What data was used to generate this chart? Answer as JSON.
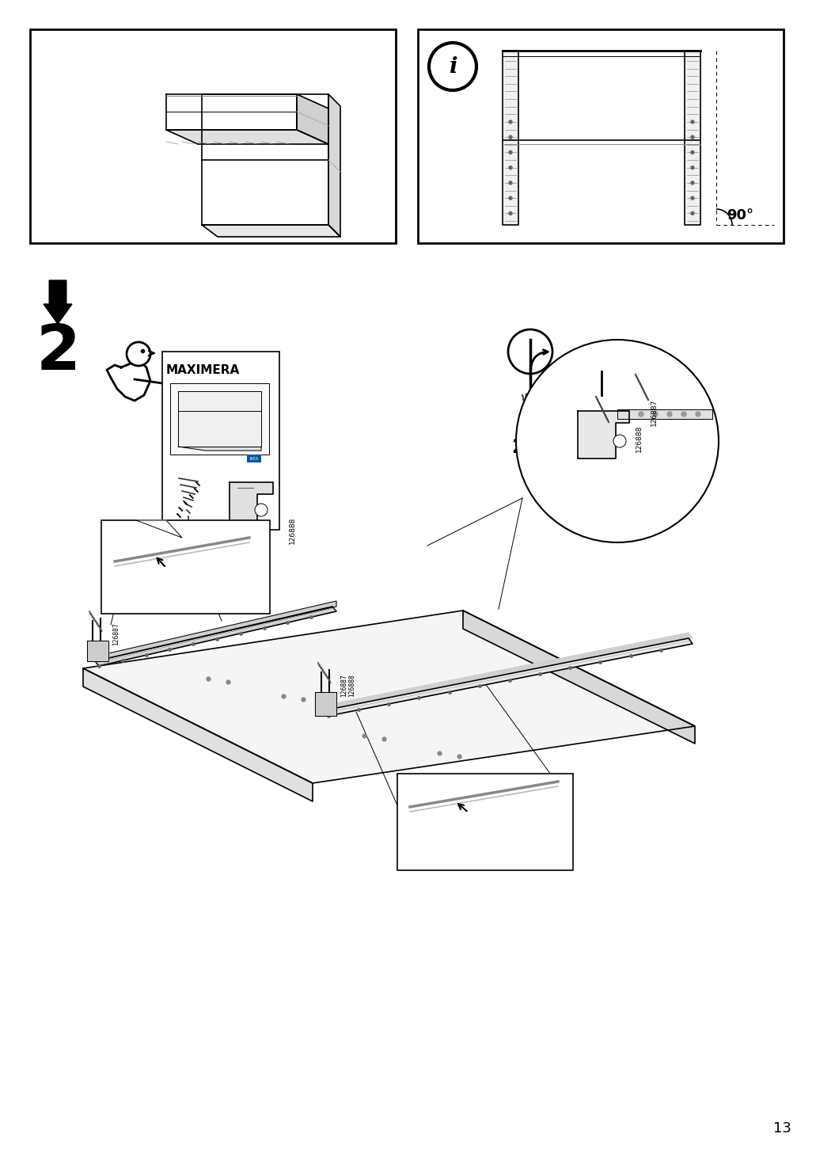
{
  "page_number": "13",
  "bg": "#ffffff",
  "lc": "#000000",
  "step_number": "2",
  "part_label1": "126887",
  "part_label2": "126888",
  "info_text": "2x",
  "angle_text": "90°",
  "product_name": "MAXIMERA"
}
